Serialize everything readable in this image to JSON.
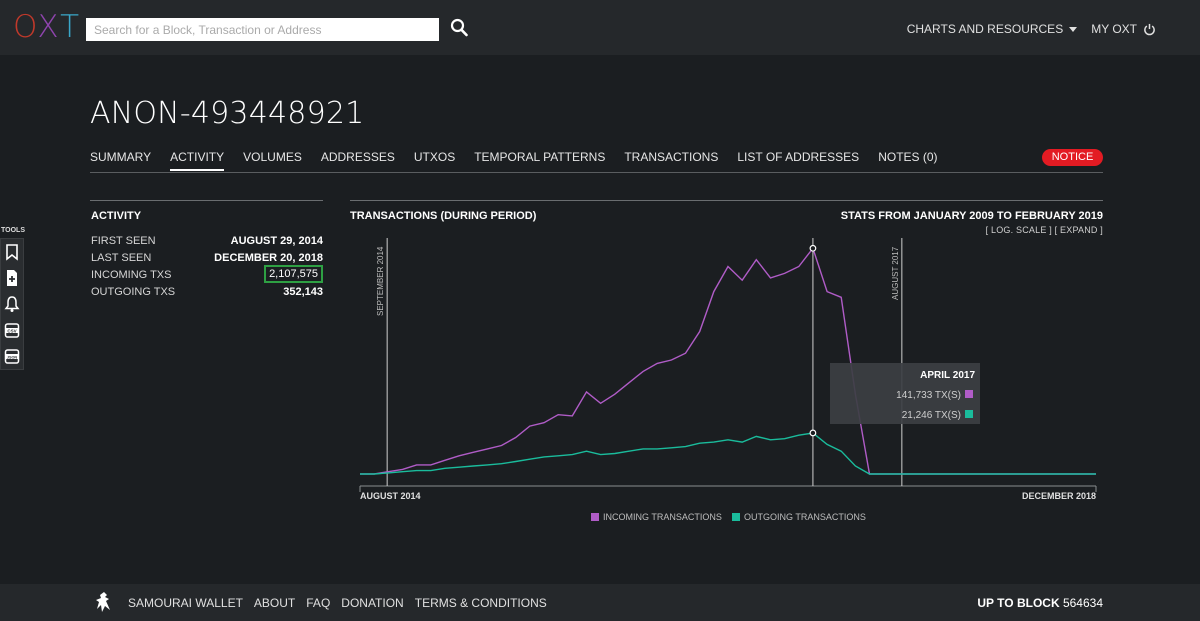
{
  "header": {
    "logo": {
      "o": "O",
      "x": "X",
      "t": "T"
    },
    "search_placeholder": "Search for a Block, Transaction or Address",
    "nav": {
      "charts": "CHARTS AND RESOURCES",
      "myoxt": "MY OXT"
    }
  },
  "tools": {
    "label": "TOOLS",
    "icons": [
      "bookmark-icon",
      "add-note-icon",
      "bell-icon",
      "csv-export-icon",
      "json-export-icon"
    ]
  },
  "page": {
    "title": "ANON-493448921",
    "tabs": [
      "SUMMARY",
      "ACTIVITY",
      "VOLUMES",
      "ADDRESSES",
      "UTXOS",
      "TEMPORAL PATTERNS",
      "TRANSACTIONS",
      "LIST OF ADDRESSES",
      "NOTES (0)"
    ],
    "active_tab": "ACTIVITY",
    "notice": "NOTICE"
  },
  "activity": {
    "heading": "ACTIVITY",
    "rows": [
      {
        "label": "FIRST SEEN",
        "value": "AUGUST 29, 2014"
      },
      {
        "label": "LAST SEEN",
        "value": "DECEMBER 20, 2018"
      },
      {
        "label": "INCOMING TXS",
        "value": "2,107,575",
        "highlighted": true
      },
      {
        "label": "OUTGOING TXS",
        "value": "352,143"
      }
    ]
  },
  "chart_panel": {
    "heading": "TRANSACTIONS (DURING PERIOD)",
    "stats_title": "STATS FROM JANUARY 2009 TO FEBRUARY 2019",
    "links": "[ LOG. SCALE ]  [ EXPAND ]"
  },
  "chart_data": {
    "type": "line",
    "xlabel_start": "AUGUST 2014",
    "xlabel_end": "DECEMBER 2018",
    "markers": [
      {
        "label": "SEPTEMBER 2014",
        "x_index": 1
      },
      {
        "label": "AUGUST 2017",
        "x_index": 38
      }
    ],
    "x_count": 53,
    "series": [
      {
        "name": "INCOMING TRANSACTIONS",
        "color": "#b05cc7",
        "values": [
          0.0,
          0.0,
          0.02,
          0.04,
          0.08,
          0.08,
          0.12,
          0.16,
          0.19,
          0.22,
          0.25,
          0.32,
          0.42,
          0.45,
          0.52,
          0.51,
          0.72,
          0.62,
          0.7,
          0.8,
          0.9,
          0.97,
          1.0,
          1.06,
          1.25,
          1.6,
          1.82,
          1.7,
          1.88,
          1.72,
          1.76,
          1.82,
          1.98,
          1.6,
          1.55,
          0.7,
          0.0,
          0.0,
          0.0,
          0.0,
          0.0,
          0.0,
          0.0,
          0.0,
          0.0,
          0.0,
          0.0,
          0.0,
          0.0,
          0.0,
          0.0,
          0.0,
          0.0
        ]
      },
      {
        "name": "OUTGOING TRANSACTIONS",
        "color": "#1abc9c",
        "values": [
          0.0,
          0.0,
          0.01,
          0.02,
          0.03,
          0.03,
          0.05,
          0.06,
          0.07,
          0.08,
          0.09,
          0.11,
          0.13,
          0.15,
          0.16,
          0.17,
          0.2,
          0.17,
          0.18,
          0.2,
          0.22,
          0.22,
          0.23,
          0.24,
          0.27,
          0.28,
          0.3,
          0.28,
          0.33,
          0.3,
          0.31,
          0.34,
          0.36,
          0.26,
          0.2,
          0.07,
          0.0,
          0.0,
          0.0,
          0.0,
          0.0,
          0.0,
          0.0,
          0.0,
          0.0,
          0.0,
          0.0,
          0.0,
          0.0,
          0.0,
          0.0,
          0.0,
          0.0
        ]
      }
    ],
    "tooltip": {
      "title": "APRIL 2017",
      "rows": [
        {
          "value": "141,733 TX(S)",
          "color": "#b05cc7"
        },
        {
          "value": "21,246 TX(S)",
          "color": "#1abc9c"
        }
      ]
    },
    "legend": [
      "INCOMING TRANSACTIONS",
      "OUTGOING TRANSACTIONS"
    ]
  },
  "footer": {
    "links": [
      "SAMOURAI WALLET",
      "ABOUT",
      "FAQ",
      "DONATION",
      "TERMS & CONDITIONS"
    ],
    "block_label": "UP TO BLOCK",
    "block_value": "564634"
  }
}
